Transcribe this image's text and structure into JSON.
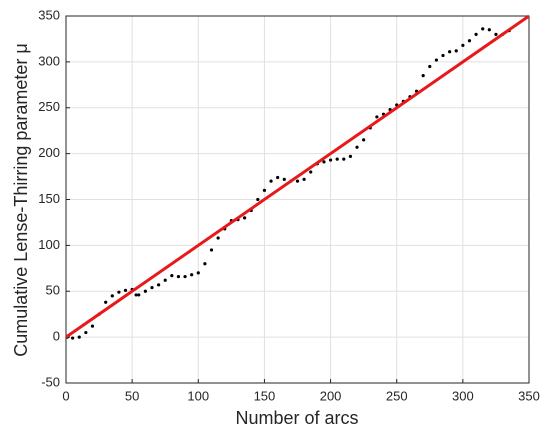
{
  "chart_data": {
    "type": "scatter",
    "xlabel": "Number of arcs",
    "ylabel": "Cumulative Lense-Thirring parameter μ",
    "xlim": [
      0,
      350
    ],
    "xticks": [
      0,
      50,
      100,
      150,
      200,
      250,
      300,
      350
    ],
    "ylim": [
      -50,
      350
    ],
    "yticks": [
      -50,
      0,
      50,
      100,
      150,
      200,
      250,
      300,
      350
    ],
    "grid": true,
    "series": [
      {
        "color": "#000000",
        "style": "points",
        "x": [
          1,
          5,
          10,
          15,
          20,
          25,
          30,
          35,
          40,
          45,
          50,
          53,
          55,
          60,
          65,
          70,
          75,
          80,
          85,
          90,
          95,
          100,
          105,
          110,
          115,
          120,
          125,
          130,
          135,
          140,
          145,
          150,
          155,
          160,
          165,
          170,
          175,
          180,
          185,
          190,
          195,
          200,
          205,
          210,
          215,
          220,
          225,
          230,
          235,
          240,
          245,
          250,
          255,
          260,
          265,
          270,
          275,
          280,
          285,
          290,
          295,
          300,
          305,
          310,
          315,
          320,
          325,
          330,
          335
        ],
        "values": [
          0,
          -1,
          0,
          5,
          12,
          25,
          38,
          45,
          49,
          51,
          52,
          46,
          46,
          50,
          54,
          57,
          62,
          67,
          66,
          66,
          68,
          70,
          80,
          95,
          108,
          118,
          127,
          128,
          130,
          138,
          150,
          160,
          170,
          174,
          172,
          170,
          170,
          172,
          180,
          189,
          191,
          193,
          194,
          194,
          197,
          207,
          215,
          228,
          240,
          243,
          248,
          253,
          257,
          262,
          268,
          285,
          295,
          302,
          307,
          311,
          312,
          318,
          323,
          330,
          336,
          335,
          330,
          330,
          334
        ]
      },
      {
        "color": "#e8191b",
        "style": "line",
        "x": [
          0,
          350
        ],
        "values": [
          0,
          350
        ]
      }
    ]
  }
}
